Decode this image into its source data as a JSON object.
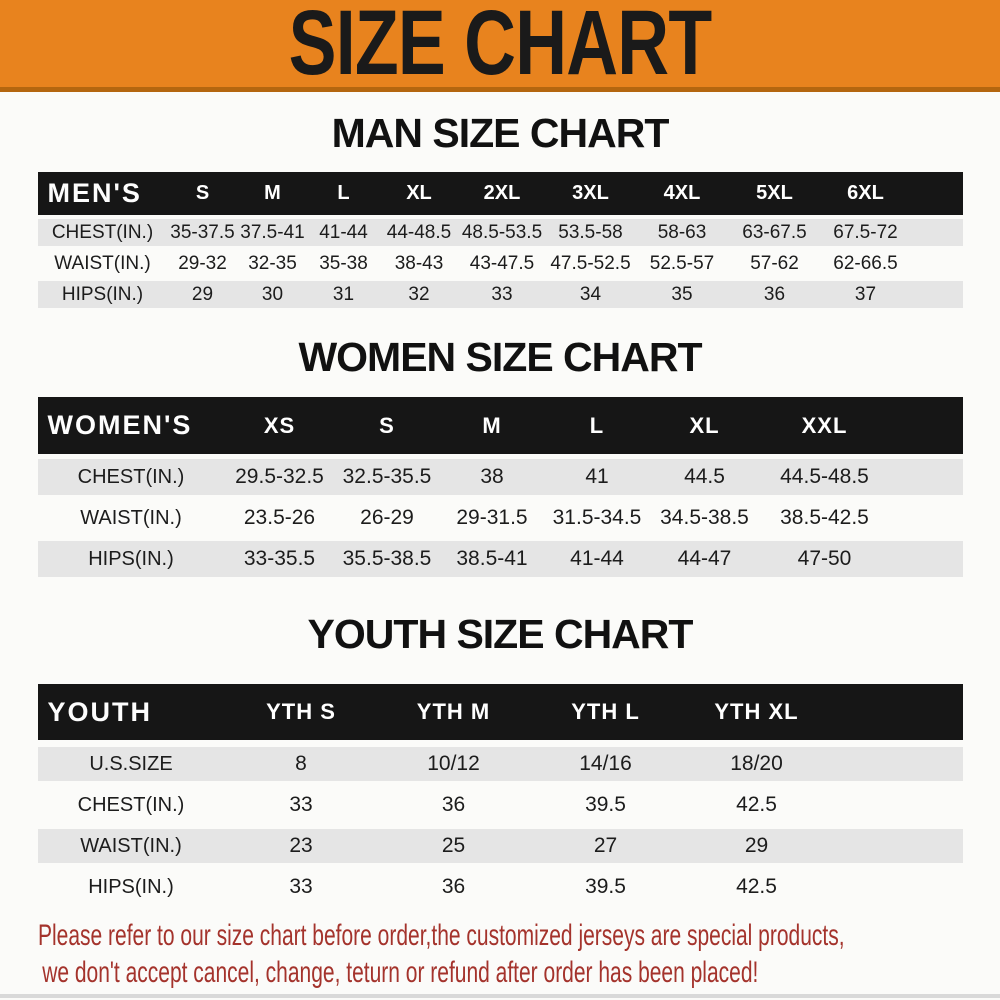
{
  "banner": {
    "title": "SIZE CHART"
  },
  "sections": [
    {
      "id": "men",
      "heading": "MAN SIZE CHART",
      "corner_label": "MEN'S",
      "columns": [
        "S",
        "M",
        "L",
        "XL",
        "2XL",
        "3XL",
        "4XL",
        "5XL",
        "6XL"
      ],
      "rows": [
        {
          "label": "CHEST(IN.)",
          "values": [
            "35-37.5",
            "37.5-41",
            "41-44",
            "44-48.5",
            "48.5-53.5",
            "53.5-58",
            "58-63",
            "63-67.5",
            "67.5-72"
          ]
        },
        {
          "label": "WAIST(IN.)",
          "values": [
            "29-32",
            "32-35",
            "35-38",
            "38-43",
            "43-47.5",
            "47.5-52.5",
            "52.5-57",
            "57-62",
            "62-66.5"
          ]
        },
        {
          "label": "HIPS(IN.)",
          "values": [
            "29",
            "30",
            "31",
            "32",
            "33",
            "34",
            "35",
            "36",
            "37"
          ]
        }
      ]
    },
    {
      "id": "women",
      "heading": "WOMEN SIZE CHART",
      "corner_label": "WOMEN'S",
      "columns": [
        "XS",
        "S",
        "M",
        "L",
        "XL",
        "XXL"
      ],
      "rows": [
        {
          "label": "CHEST(IN.)",
          "values": [
            "29.5-32.5",
            "32.5-35.5",
            "38",
            "41",
            "44.5",
            "44.5-48.5"
          ]
        },
        {
          "label": "WAIST(IN.)",
          "values": [
            "23.5-26",
            "26-29",
            "29-31.5",
            "31.5-34.5",
            "34.5-38.5",
            "38.5-42.5"
          ]
        },
        {
          "label": "HIPS(IN.)",
          "values": [
            "33-35.5",
            "35.5-38.5",
            "38.5-41",
            "41-44",
            "44-47",
            "47-50"
          ]
        }
      ]
    },
    {
      "id": "youth",
      "heading": "YOUTH SIZE CHART",
      "corner_label": "YOUTH",
      "columns": [
        "YTH S",
        "YTH M",
        "YTH L",
        "YTH XL"
      ],
      "rows": [
        {
          "label": "U.S.SIZE",
          "values": [
            "8",
            "10/12",
            "14/16",
            "18/20"
          ]
        },
        {
          "label": "CHEST(IN.)",
          "values": [
            "33",
            "36",
            "39.5",
            "42.5"
          ]
        },
        {
          "label": "WAIST(IN.)",
          "values": [
            "23",
            "25",
            "27",
            "29"
          ]
        },
        {
          "label": "HIPS(IN.)",
          "values": [
            "33",
            "36",
            "39.5",
            "42.5"
          ]
        }
      ]
    }
  ],
  "footer": {
    "line1": "Please refer to our size chart before order,the customized jerseys are special products,",
    "line2": "we don't accept cancel, change, teturn or refund after order has been placed!"
  },
  "colors": {
    "banner_orange": "#E8831E",
    "banner_border": "#B4660F",
    "header_black": "#161616",
    "row_gray": "#E5E5E5",
    "footer_red": "#A4332C"
  }
}
